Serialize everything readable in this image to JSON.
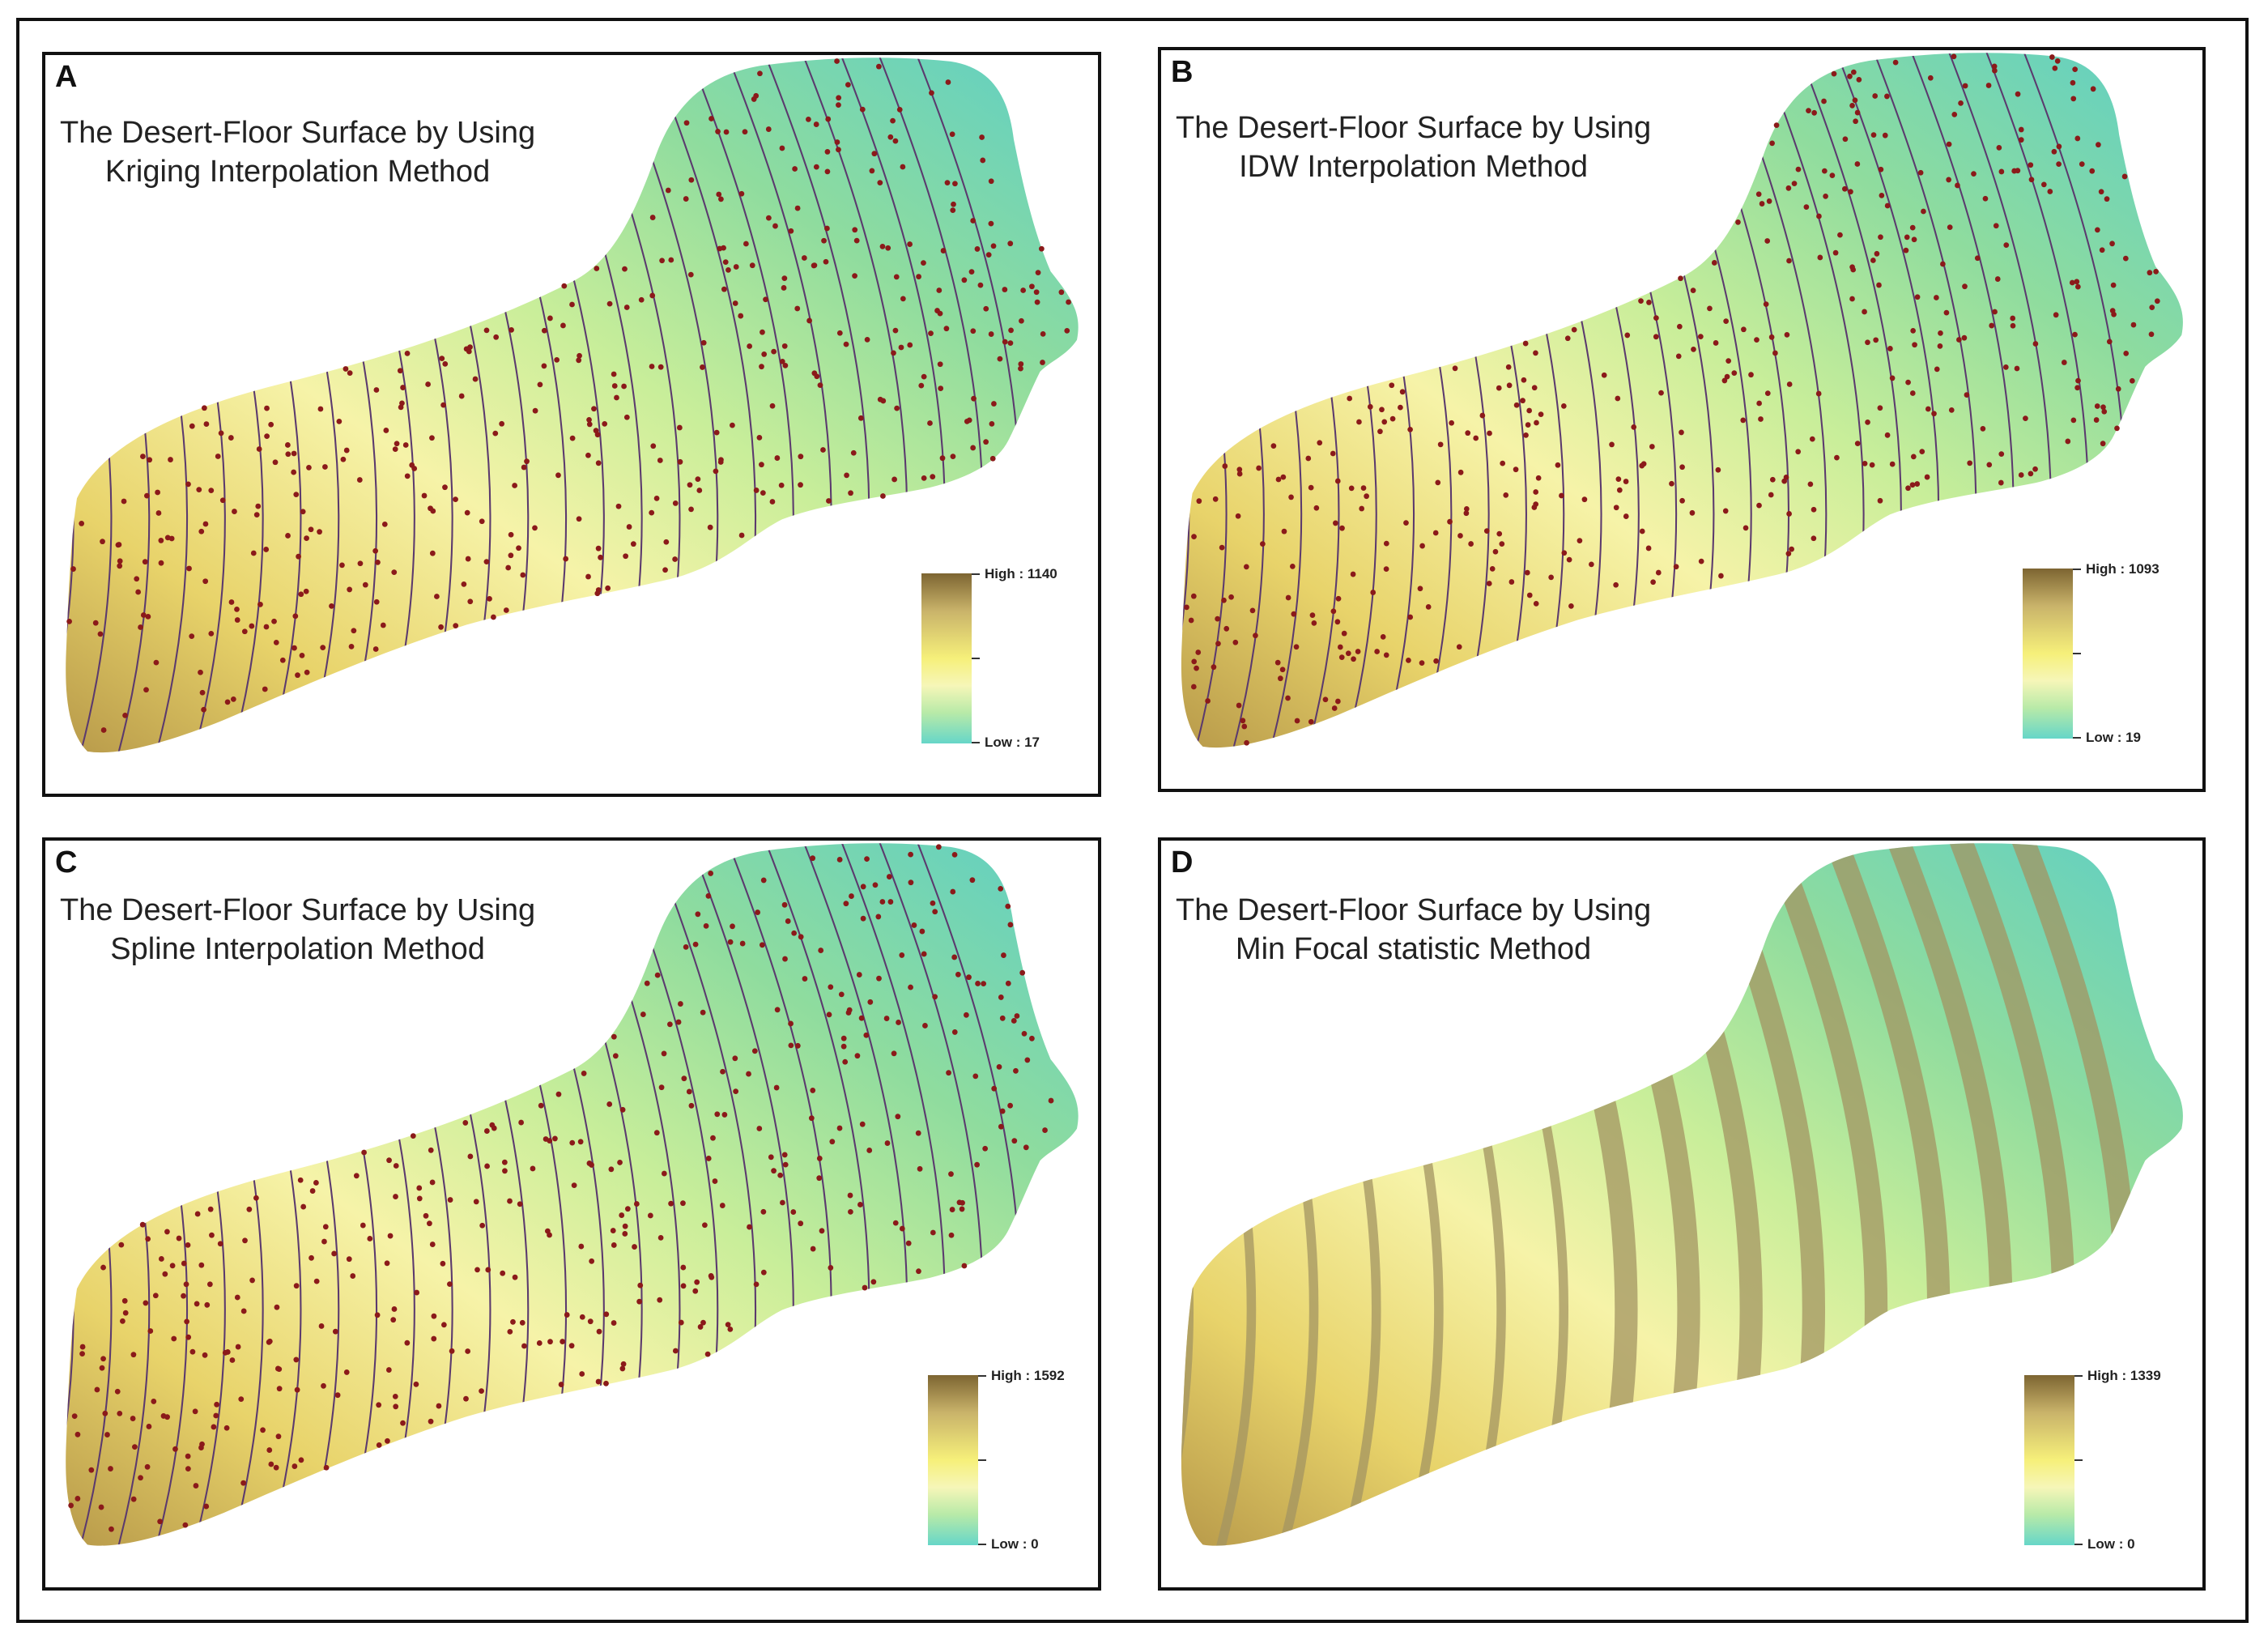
{
  "panels": [
    {
      "letter": "A",
      "title_line1": "The Desert-Floor Surface by Using",
      "title_line2": "Kriging Interpolation Method",
      "legend_high": "High : 1140",
      "legend_low": "Low : 17",
      "style": "contours"
    },
    {
      "letter": "B",
      "title_line1": "The Desert-Floor Surface by Using",
      "title_line2": "IDW Interpolation Method",
      "legend_high": "High : 1093",
      "legend_low": "Low : 19",
      "style": "contours"
    },
    {
      "letter": "C",
      "title_line1": "The Desert-Floor Surface by Using",
      "title_line2": "Spline Interpolation Method",
      "legend_high": "High : 1592",
      "legend_low": "Low : 0",
      "style": "contours"
    },
    {
      "letter": "D",
      "title_line1": "The Desert-Floor Surface by Using",
      "title_line2": "Min Focal statistic Method",
      "legend_high": "High : 1339",
      "legend_low": "Low : 0",
      "style": "bands"
    }
  ],
  "colors": {
    "ramp_high": "#7d6532",
    "ramp_mid": "#f6f07a",
    "ramp_low": "#66d6c8",
    "contour_line": "#5b3a6e",
    "sample_point": "#8b1a1a",
    "band_dark": "#a39462"
  }
}
